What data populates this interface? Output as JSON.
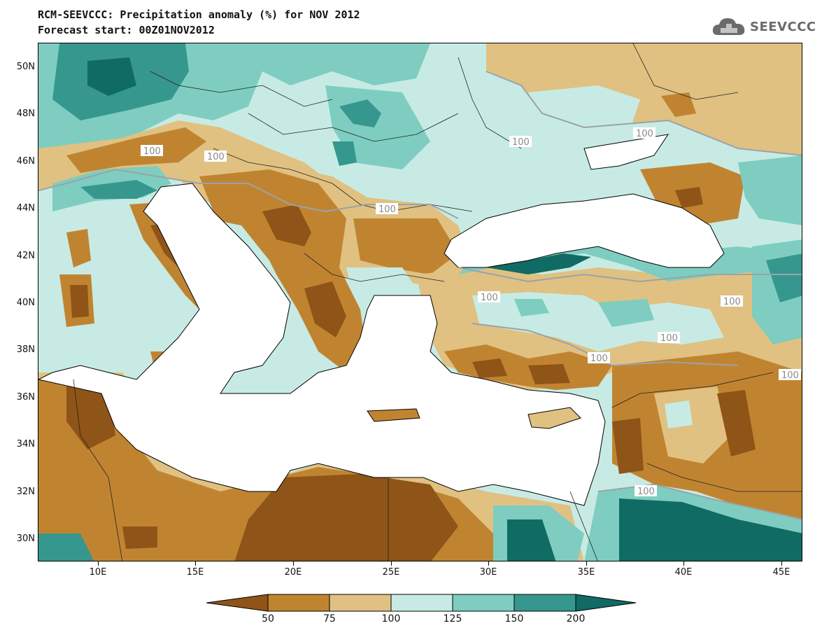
{
  "title": {
    "line1": "RCM-SEEVCCC: Precipitation anomaly (%) for NOV 2012",
    "line2": "Forecast start: 00Z01NOV2012"
  },
  "logo": {
    "text": "SEEVCCC",
    "icon": "cloud-logo-icon"
  },
  "map": {
    "contour_label": "100",
    "lat_labels": [
      "50N",
      "48N",
      "46N",
      "44N",
      "42N",
      "40N",
      "38N",
      "36N",
      "34N",
      "32N",
      "30N"
    ],
    "lon_labels": [
      "10E",
      "15E",
      "20E",
      "25E",
      "30E",
      "35E",
      "40E",
      "45E"
    ],
    "colors": {
      "lt50": "#8f5417",
      "50_75": "#c08431",
      "75_100": "#e0c181",
      "100_125": "#c7ebe4",
      "125_150": "#7ecdc0",
      "150_200": "#36978e",
      "gt200": "#0f6b63",
      "land_void": "#ffffff"
    }
  },
  "colorbar": {
    "labels": [
      "50",
      "75",
      "100",
      "125",
      "150",
      "200"
    ]
  }
}
